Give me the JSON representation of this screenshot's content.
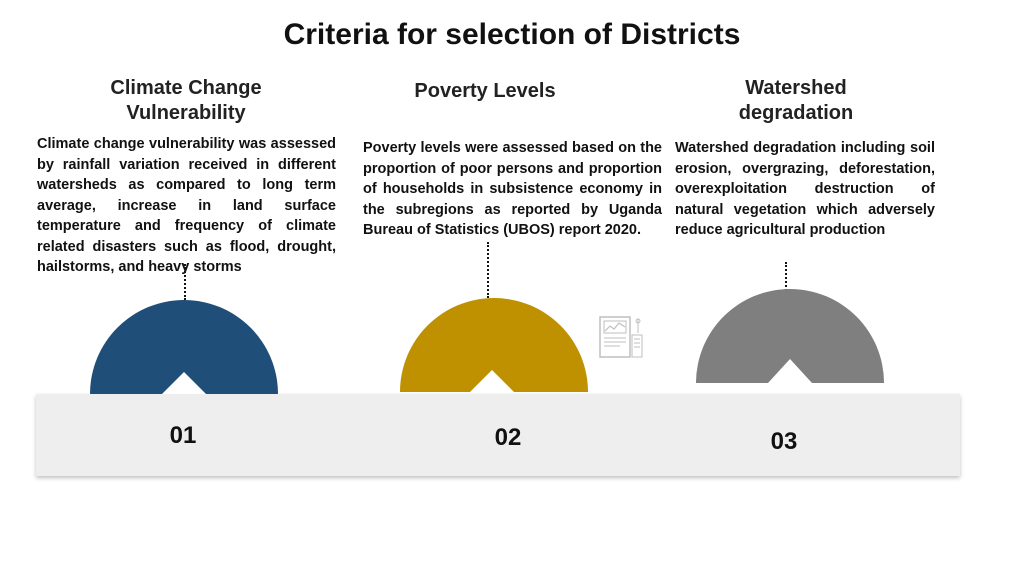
{
  "title": "Criteria for selection of Districts",
  "columns": [
    {
      "heading_line1": "Climate Change",
      "heading_line2": "Vulnerability",
      "body": "Climate change vulnerability was assessed by rainfall variation received in different watersheds as compared to long term average, increase in land surface temperature and frequency of climate related disasters such as flood, drought, hailstorms, and heavy storms",
      "number": "01",
      "color": "#1f4e79"
    },
    {
      "heading_line1": "Poverty Levels",
      "heading_line2": "",
      "body": "Poverty levels were assessed based on the proportion of poor persons and proportion of households in subsistence economy in the subregions as reported by Uganda Bureau of Statistics (UBOS) report 2020.",
      "number": "02",
      "color": "#bf9000"
    },
    {
      "heading_line1": "Watershed",
      "heading_line2": "degradation",
      "body": "Watershed degradation including soil erosion, overgrazing, deforestation, overexploitation destruction of natural vegetation which adversely reduce agricultural production",
      "number": "03",
      "color": "#7f7f7f"
    }
  ],
  "icons": {
    "document": "document-chart-icon"
  }
}
